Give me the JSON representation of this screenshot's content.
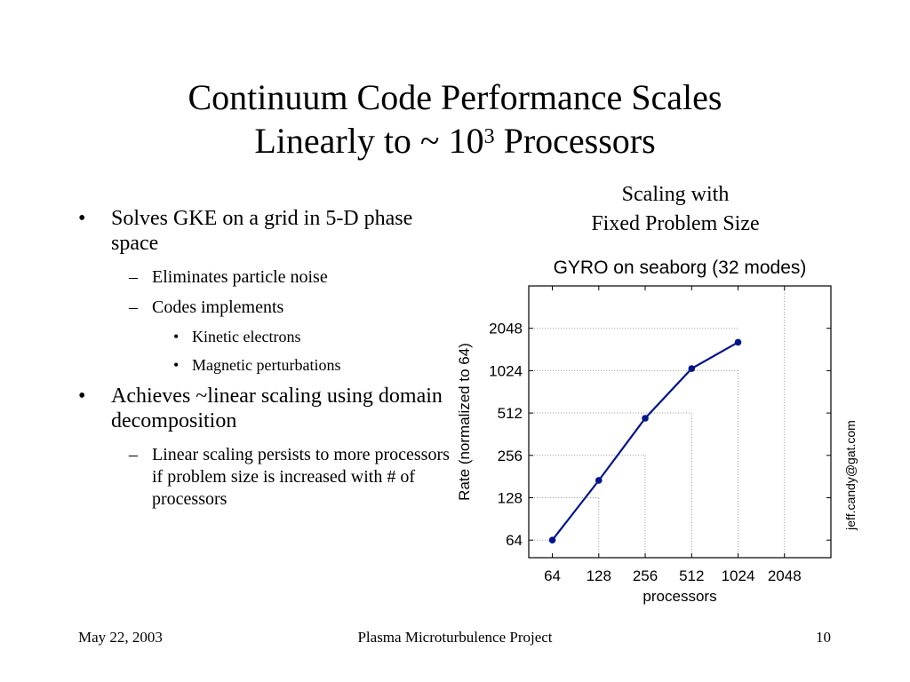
{
  "slide": {
    "title_line1": "Continuum Code Performance Scales",
    "title_line2_prefix": "Linearly to ~ 10",
    "title_line2_sup": "3",
    "title_line2_suffix": " Processors",
    "bullets": [
      {
        "text": "Solves GKE on a grid in 5-D phase space",
        "subs": [
          {
            "text": "Eliminates particle noise",
            "subs": []
          },
          {
            "text": "Codes implements",
            "subs": [
              "Kinetic electrons",
              "Magnetic perturbations"
            ]
          }
        ]
      },
      {
        "text": "Achieves ~linear scaling using domain decomposition",
        "subs": [
          {
            "text": "Linear scaling persists to more processors if problem size is increased with # of processors",
            "subs": []
          }
        ]
      }
    ],
    "caption_line1": "Scaling with",
    "caption_line2": "Fixed Problem Size"
  },
  "chart_data": {
    "type": "line",
    "title": "GYRO on seaborg (32 modes)",
    "xlabel": "processors",
    "ylabel": "Rate (normalized to 64)",
    "x_scale": "log2",
    "y_scale": "log2",
    "xticks": [
      64,
      128,
      256,
      512,
      1024,
      2048
    ],
    "yticks": [
      64,
      128,
      256,
      512,
      1024,
      2048
    ],
    "xlim": [
      45,
      4096
    ],
    "ylim": [
      48,
      4096
    ],
    "grid": "dotted",
    "side_label": "jeff.candy@gat.com",
    "series": [
      {
        "x": [
          64,
          128,
          256,
          512,
          1024
        ],
        "y": [
          64,
          170,
          470,
          1060,
          1630
        ],
        "color": "#00148c"
      }
    ]
  },
  "footer": {
    "date": "May  22, 2003",
    "project": "Plasma Microturbulence Project",
    "page": "10"
  }
}
